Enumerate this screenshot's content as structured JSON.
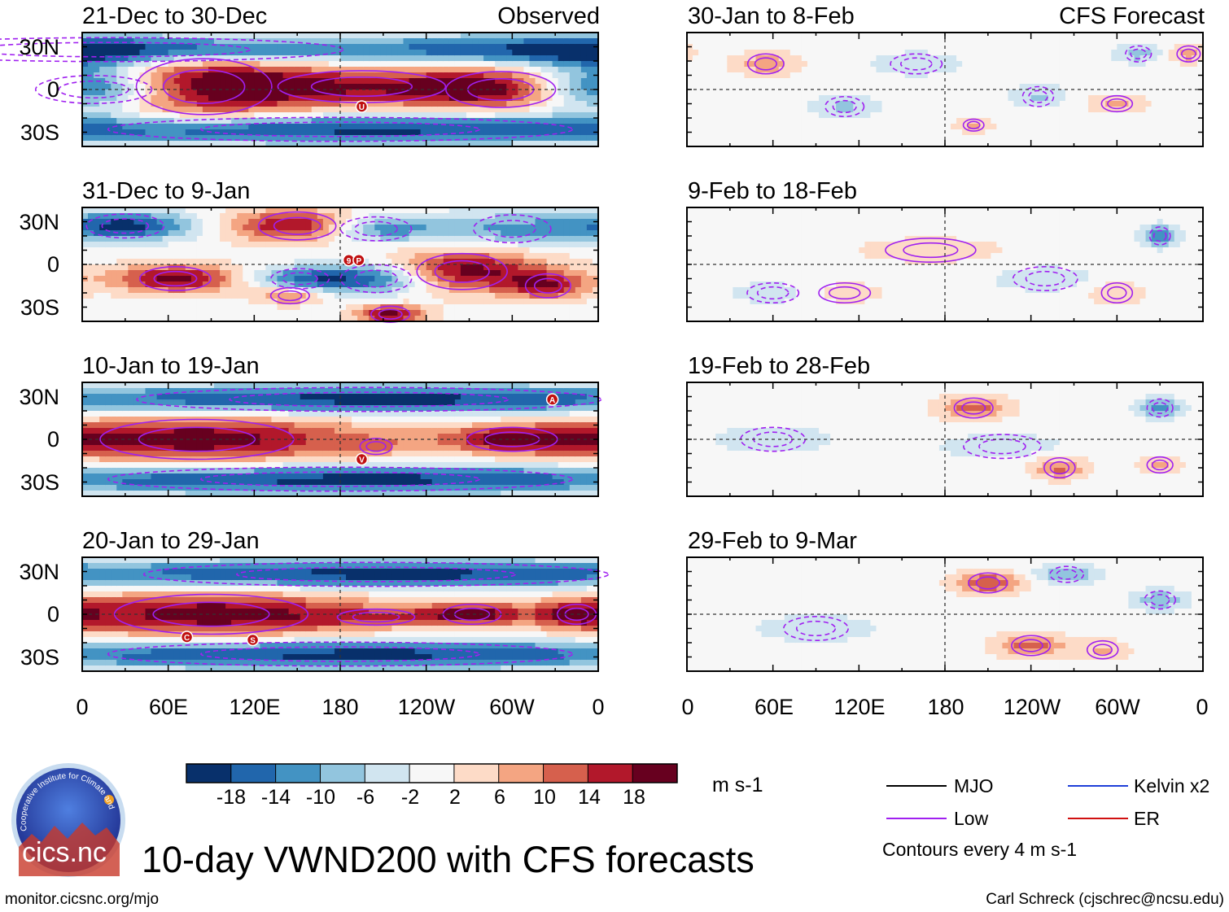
{
  "chart_data": {
    "type": "heatmap",
    "title": "10-day VWND200 with CFS forecasts",
    "variable": "VWND200",
    "units": "m s-1",
    "x_ticks": [
      "0",
      "60E",
      "120E",
      "180",
      "120W",
      "60W",
      "0"
    ],
    "y_ticks": [
      "30N",
      "0",
      "30S"
    ],
    "observed_label": "Observed",
    "forecast_label": "CFS Forecast",
    "colorbar": {
      "ticks": [
        "-18",
        "-14",
        "-10",
        "-6",
        "-2",
        "2",
        "6",
        "10",
        "14",
        "18"
      ],
      "colors": [
        "#08306b",
        "#2166ac",
        "#4393c3",
        "#92c5de",
        "#d1e5f0",
        "#f7f7f7",
        "#fddbc7",
        "#f4a582",
        "#d6604d",
        "#b2182b",
        "#67001f"
      ]
    },
    "legend": [
      {
        "label": "MJO",
        "color": "#000000"
      },
      {
        "label": "Kelvin x2",
        "color": "#1f3fd8"
      },
      {
        "label": "Low",
        "color": "#a020f0"
      },
      {
        "label": "ER",
        "color": "#d01010"
      }
    ],
    "contour_note": "Contours every 4 m s-1",
    "panels": [
      {
        "column": "observed",
        "title": "21-Dec to 30-Dec",
        "storms": [
          {
            "label": "U",
            "lon": 195,
            "lat": -12
          }
        ]
      },
      {
        "column": "observed",
        "title": "31-Dec to 9-Jan",
        "storms": [
          {
            "label": "9",
            "lon": 186,
            "lat": 3
          },
          {
            "label": "P",
            "lon": 193,
            "lat": 3
          }
        ]
      },
      {
        "column": "observed",
        "title": "10-Jan to 19-Jan",
        "storms": [
          {
            "label": "A",
            "lon": 328,
            "lat": 28
          },
          {
            "label": "V",
            "lon": 195,
            "lat": -14
          }
        ]
      },
      {
        "column": "observed",
        "title": "20-Jan to 29-Jan",
        "storms": [
          {
            "label": "C",
            "lon": 73,
            "lat": -16
          },
          {
            "label": "S",
            "lon": 119,
            "lat": -18
          }
        ]
      },
      {
        "column": "forecast",
        "title": "30-Jan to 8-Feb",
        "storms": []
      },
      {
        "column": "forecast",
        "title": "9-Feb to 18-Feb",
        "storms": []
      },
      {
        "column": "forecast",
        "title": "19-Feb to 28-Feb",
        "storms": []
      },
      {
        "column": "forecast",
        "title": "29-Feb to 9-Mar",
        "storms": []
      }
    ]
  },
  "logo": {
    "text": "cics.nc",
    "ring_text": "Cooperative Institute for Climate and Satellites"
  },
  "footer": {
    "url": "monitor.cicsnc.org/mjo",
    "credit": "Carl Schreck (cjschrec@ncsu.edu)"
  }
}
